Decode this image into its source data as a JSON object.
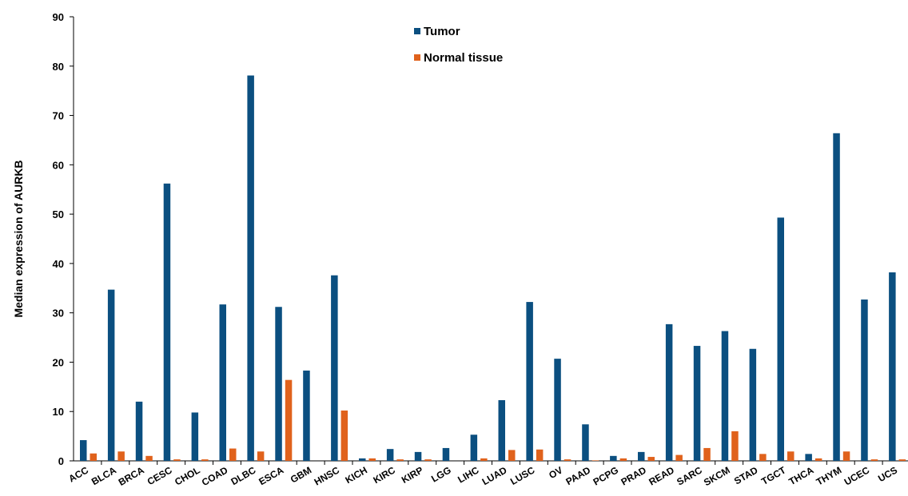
{
  "chart_data": {
    "type": "bar",
    "title": "",
    "xlabel": "",
    "ylabel": "Median expression of AURKB",
    "ylim": [
      0,
      90
    ],
    "yticks": [
      0,
      10,
      20,
      30,
      40,
      50,
      60,
      70,
      80,
      90
    ],
    "grid": false,
    "legend_position": "top-center",
    "categories": [
      "ACC",
      "BLCA",
      "BRCA",
      "CESC",
      "CHOL",
      "COAD",
      "DLBC",
      "ESCA",
      "GBM",
      "HNSC",
      "KICH",
      "KIRC",
      "KIRP",
      "LGG",
      "LIHC",
      "LUAD",
      "LUSC",
      "OV",
      "PAAD",
      "PCPG",
      "PRAD",
      "READ",
      "SARC",
      "SKCM",
      "STAD",
      "TGCT",
      "THCA",
      "THYM",
      "UCEC",
      "UCS"
    ],
    "series": [
      {
        "name": "Tumor",
        "color": "#0b4f80",
        "values": [
          4.2,
          34.7,
          12.0,
          56.2,
          9.8,
          31.7,
          78.1,
          31.2,
          18.3,
          37.6,
          0.5,
          2.4,
          1.8,
          2.6,
          5.3,
          12.3,
          32.2,
          20.7,
          7.4,
          1.0,
          1.8,
          27.7,
          23.3,
          26.3,
          22.7,
          49.3,
          1.4,
          66.4,
          32.7,
          38.2
        ]
      },
      {
        "name": "Normal tissue",
        "color": "#e0621c",
        "values": [
          1.5,
          1.9,
          1.0,
          0.3,
          0.3,
          2.5,
          1.9,
          16.4,
          0.0,
          10.2,
          0.5,
          0.3,
          0.3,
          0.0,
          0.5,
          2.2,
          2.3,
          0.3,
          0.1,
          0.5,
          0.8,
          1.2,
          2.6,
          6.0,
          1.4,
          1.9,
          0.5,
          1.9,
          0.3,
          0.3
        ]
      }
    ]
  }
}
